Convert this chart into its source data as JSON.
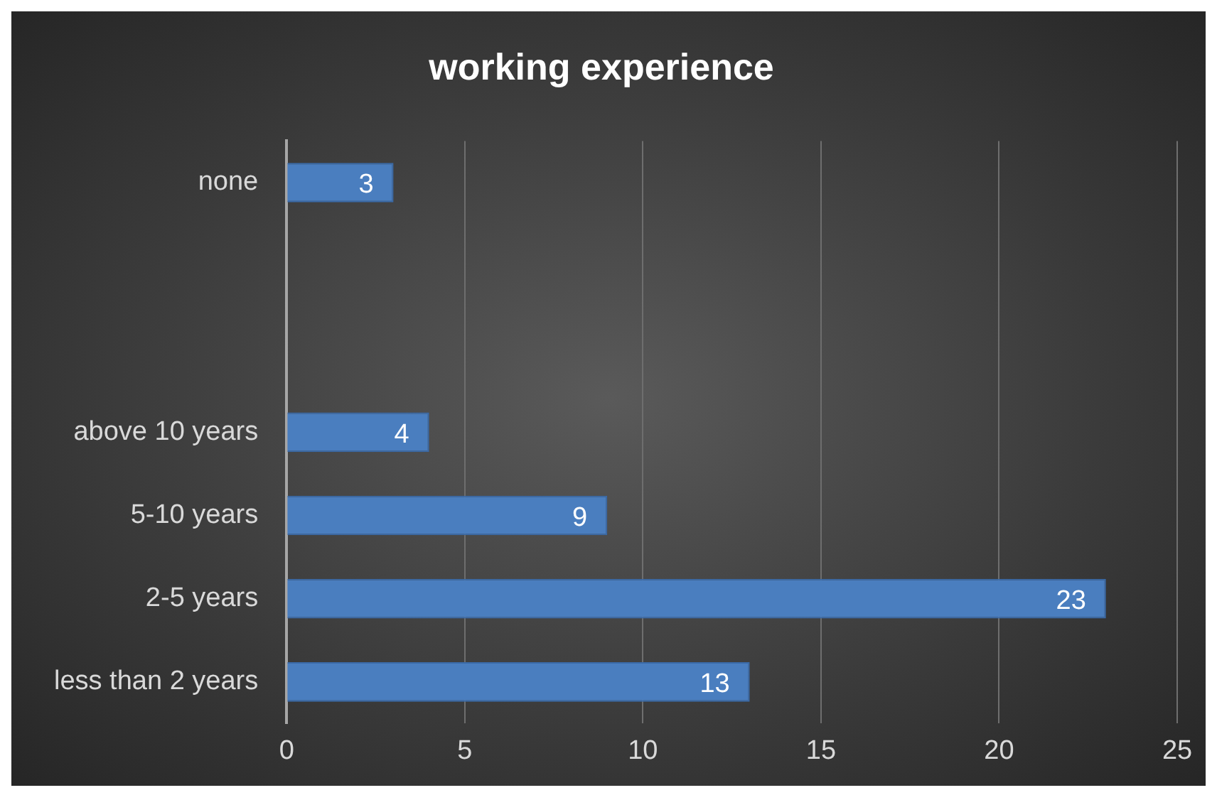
{
  "chart_data": {
    "type": "bar",
    "title": "working experience",
    "orientation": "horizontal",
    "categories": [
      "none",
      null,
      null,
      "above 10 years",
      "5-10 years",
      "2-5 years",
      "less than 2 years"
    ],
    "values": [
      3,
      null,
      null,
      4,
      9,
      23,
      13
    ],
    "color": "#4a7ebf",
    "xlim": [
      0,
      25
    ],
    "xticks": [
      0,
      5,
      10,
      15,
      20,
      25
    ],
    "grid": "x",
    "data_labels": true,
    "legend": false
  }
}
